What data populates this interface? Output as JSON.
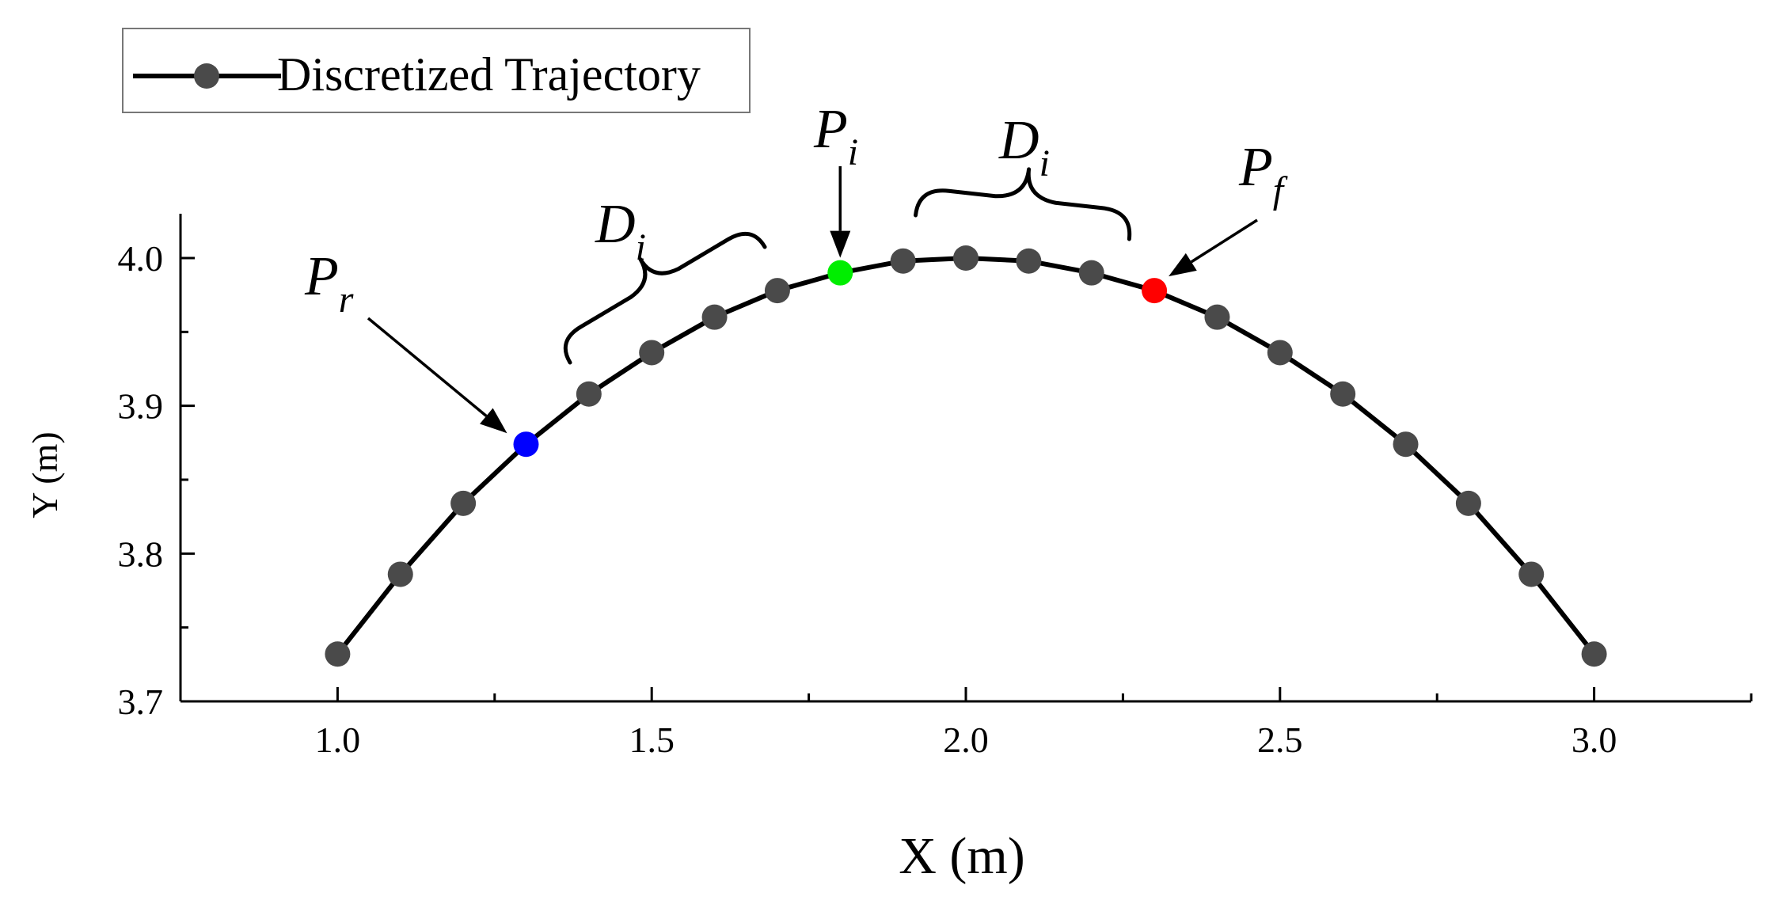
{
  "chart_data": {
    "type": "line",
    "title": "",
    "xlabel": "X (m)",
    "ylabel": "Y (m)",
    "xlim": [
      0.75,
      3.25
    ],
    "ylim": [
      3.7,
      4.03
    ],
    "grid": false,
    "legend_placement": "top-left",
    "x_ticks": [
      "1.0",
      "1.5",
      "2.0",
      "2.5",
      "3.0"
    ],
    "x_tick_values": [
      1.0,
      1.5,
      2.0,
      2.5,
      3.0
    ],
    "y_ticks": [
      "3.7",
      "3.8",
      "3.9",
      "4.0"
    ],
    "y_tick_values": [
      3.7,
      3.8,
      3.9,
      4.0
    ],
    "series": [
      {
        "name": "Discretized Trajectory",
        "color": "#4a4a4a",
        "line_color": "#000000",
        "x": [
          1.0,
          1.1,
          1.2,
          1.3,
          1.4,
          1.5,
          1.6,
          1.7,
          1.8,
          1.9,
          2.0,
          2.1,
          2.2,
          2.3,
          2.4,
          2.5,
          2.6,
          2.7,
          2.8,
          2.9,
          3.0
        ],
        "y": [
          3.732,
          3.786,
          3.834,
          3.874,
          3.908,
          3.936,
          3.96,
          3.978,
          3.99,
          3.998,
          4.0,
          3.998,
          3.99,
          3.978,
          3.96,
          3.936,
          3.908,
          3.874,
          3.834,
          3.786,
          3.732
        ]
      }
    ],
    "highlighted_points": [
      {
        "label": "P",
        "sub": "r",
        "x": 1.3,
        "y": 3.874,
        "color": "#0000ff"
      },
      {
        "label": "P",
        "sub": "i",
        "x": 1.8,
        "y": 3.99,
        "color": "#00ee00"
      },
      {
        "label": "P",
        "sub": "f",
        "x": 2.3,
        "y": 3.978,
        "color": "#ff0000"
      }
    ],
    "annotations": [
      {
        "label": "D",
        "sub": "i",
        "type": "brace",
        "x_from": 1.37,
        "x_to": 1.68
      },
      {
        "label": "D",
        "sub": "i",
        "type": "brace",
        "x_from": 1.92,
        "x_to": 2.26
      }
    ]
  }
}
